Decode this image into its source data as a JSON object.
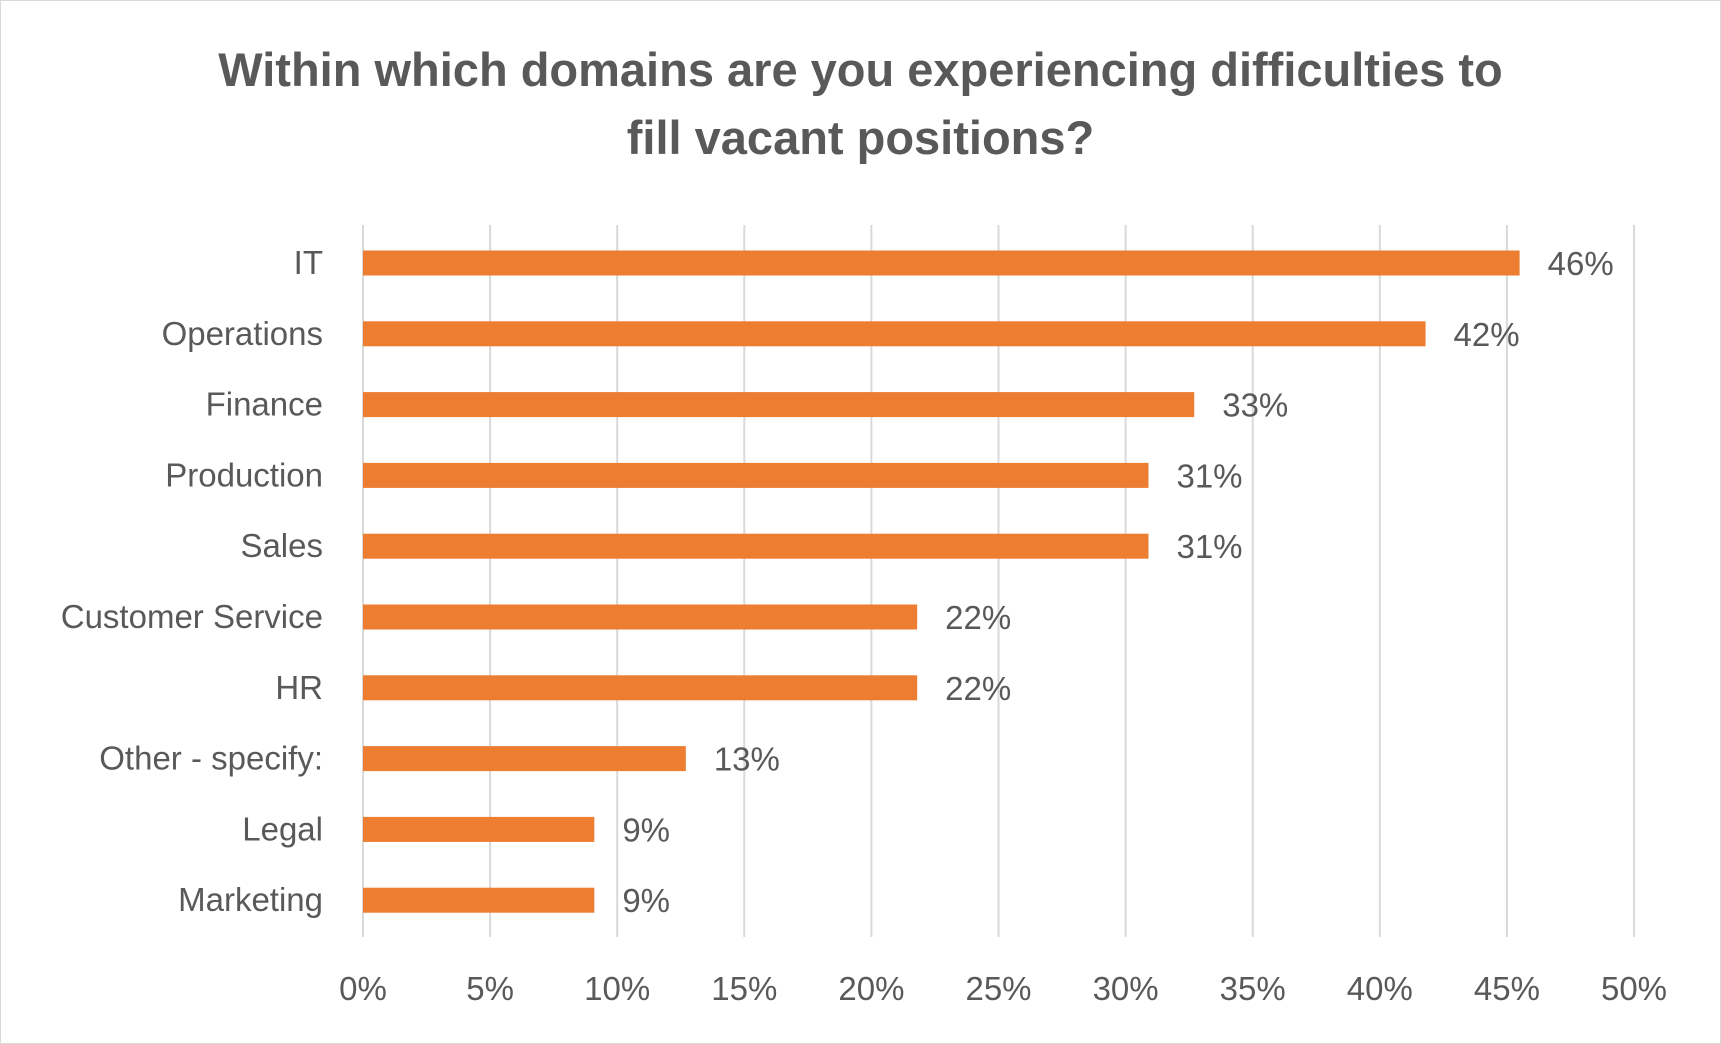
{
  "chart_data": {
    "type": "bar",
    "orientation": "horizontal",
    "title_lines": [
      "Within which domains are you experiencing difficulties to",
      "fill vacant positions?"
    ],
    "categories": [
      "IT",
      "Operations",
      "Finance",
      "Production",
      "Sales",
      "Customer Service",
      "HR",
      "Other - specify:",
      "Legal",
      "Marketing"
    ],
    "values": [
      45.5,
      41.8,
      32.7,
      30.9,
      30.9,
      21.8,
      21.8,
      12.7,
      9.1,
      9.1
    ],
    "data_labels": [
      "46%",
      "42%",
      "33%",
      "31%",
      "31%",
      "22%",
      "22%",
      "13%",
      "9%",
      "9%"
    ],
    "xlim": [
      0,
      50
    ],
    "xticks": [
      0,
      5,
      10,
      15,
      20,
      25,
      30,
      35,
      40,
      45,
      50
    ],
    "xtick_labels": [
      "0%",
      "5%",
      "10%",
      "15%",
      "20%",
      "25%",
      "30%",
      "35%",
      "40%",
      "45%",
      "50%"
    ],
    "grid": "vertical",
    "legend": "none",
    "bar_color": "#ed7d31",
    "grid_color": "#d9d9d9",
    "text_color": "#595959"
  }
}
